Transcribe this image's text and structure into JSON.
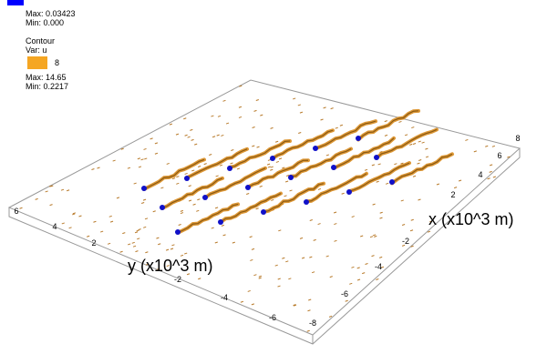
{
  "legend_top": {
    "max": "Max: 0.03423",
    "min": "Min: 0.000"
  },
  "legend_contour": {
    "title": "Contour",
    "var": "Var: u",
    "level": "8",
    "max": "Max: 14.65",
    "min": "Min: 0.2217"
  },
  "axes": {
    "x_label": "x (x10^3 m)",
    "y_label": "y (x10^3 m)",
    "x_ticks": [
      "8",
      "6",
      "4",
      "2",
      "-2",
      "-4",
      "-6",
      "-8"
    ],
    "y_ticks": [
      "6",
      "4",
      "2",
      "-2",
      "-4",
      "-6"
    ]
  }
}
